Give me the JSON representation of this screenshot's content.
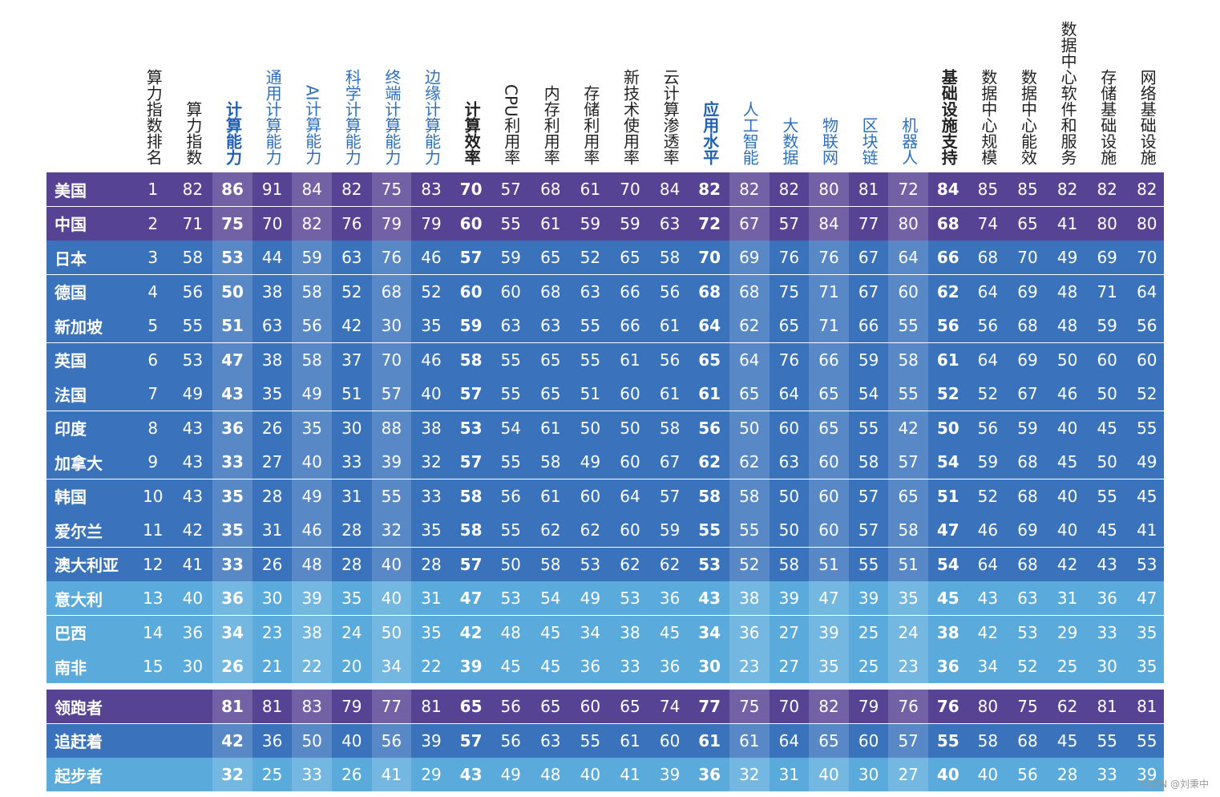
{
  "headers": [
    {
      "label": "算力指数排名",
      "style": "normal"
    },
    {
      "label": "算力指数",
      "style": "normal"
    },
    {
      "label": "计算能力",
      "style": "blue-bold"
    },
    {
      "label": "通用计算能力",
      "style": "blue"
    },
    {
      "label": "AI计算能力",
      "style": "blue"
    },
    {
      "label": "科学计算能力",
      "style": "blue"
    },
    {
      "label": "终端计算能力",
      "style": "blue"
    },
    {
      "label": "边缘计算能力",
      "style": "blue"
    },
    {
      "label": "计算效率",
      "style": "bold"
    },
    {
      "label": "CPU利用率",
      "style": "normal"
    },
    {
      "label": "内存利用率",
      "style": "normal"
    },
    {
      "label": "存储利用率",
      "style": "normal"
    },
    {
      "label": "新技术使用率",
      "style": "normal"
    },
    {
      "label": "云计算渗透率",
      "style": "normal"
    },
    {
      "label": "应用水平",
      "style": "blue-bold"
    },
    {
      "label": "人工智能",
      "style": "blue"
    },
    {
      "label": "大数据",
      "style": "blue"
    },
    {
      "label": "物联网",
      "style": "blue"
    },
    {
      "label": "区块链",
      "style": "blue"
    },
    {
      "label": "机器人",
      "style": "blue"
    },
    {
      "label": "基础设施支持",
      "style": "bold"
    },
    {
      "label": "数据中心规模",
      "style": "normal"
    },
    {
      "label": "数据中心能效",
      "style": "normal"
    },
    {
      "label": "数据中心软件和服务",
      "style": "normal"
    },
    {
      "label": "存储基础设施",
      "style": "normal"
    },
    {
      "label": "网络基础设施",
      "style": "normal"
    }
  ],
  "bold_columns": [
    2,
    8,
    14,
    20
  ],
  "banded_columns": [
    2,
    4,
    6,
    15,
    17,
    19
  ],
  "colors": {
    "leader": "#574394",
    "catcher": "#3a72bb",
    "starter": "#5aaadc"
  },
  "rows": [
    {
      "name": "美国",
      "group": "leader",
      "values": [
        "1",
        "82",
        "86",
        "91",
        "84",
        "82",
        "75",
        "83",
        "70",
        "57",
        "68",
        "61",
        "70",
        "84",
        "82",
        "82",
        "82",
        "80",
        "81",
        "72",
        "84",
        "85",
        "85",
        "82",
        "82",
        "82"
      ]
    },
    {
      "name": "中国",
      "group": "leader",
      "values": [
        "2",
        "71",
        "75",
        "70",
        "82",
        "76",
        "79",
        "79",
        "60",
        "55",
        "61",
        "59",
        "59",
        "63",
        "72",
        "67",
        "57",
        "84",
        "77",
        "80",
        "68",
        "74",
        "65",
        "41",
        "80",
        "80"
      ]
    },
    {
      "name": "日本",
      "group": "catcher",
      "values": [
        "3",
        "58",
        "53",
        "44",
        "59",
        "63",
        "76",
        "46",
        "57",
        "59",
        "65",
        "52",
        "65",
        "58",
        "70",
        "69",
        "76",
        "76",
        "67",
        "64",
        "66",
        "68",
        "70",
        "49",
        "69",
        "70"
      ]
    },
    {
      "name": "德国",
      "group": "catcher",
      "values": [
        "4",
        "56",
        "50",
        "38",
        "58",
        "52",
        "68",
        "52",
        "60",
        "60",
        "68",
        "63",
        "66",
        "56",
        "68",
        "68",
        "75",
        "71",
        "67",
        "60",
        "62",
        "64",
        "69",
        "48",
        "71",
        "64"
      ]
    },
    {
      "name": "新加坡",
      "group": "catcher",
      "values": [
        "5",
        "55",
        "51",
        "63",
        "56",
        "42",
        "30",
        "35",
        "59",
        "63",
        "63",
        "55",
        "66",
        "61",
        "64",
        "62",
        "65",
        "71",
        "66",
        "55",
        "56",
        "56",
        "68",
        "48",
        "59",
        "56"
      ]
    },
    {
      "name": "英国",
      "group": "catcher",
      "values": [
        "6",
        "53",
        "47",
        "38",
        "58",
        "37",
        "70",
        "46",
        "58",
        "55",
        "65",
        "55",
        "61",
        "56",
        "65",
        "64",
        "76",
        "66",
        "59",
        "58",
        "61",
        "64",
        "69",
        "50",
        "60",
        "60"
      ]
    },
    {
      "name": "法国",
      "group": "catcher",
      "values": [
        "7",
        "49",
        "43",
        "35",
        "49",
        "51",
        "57",
        "40",
        "57",
        "55",
        "65",
        "51",
        "60",
        "61",
        "61",
        "65",
        "64",
        "65",
        "54",
        "55",
        "52",
        "52",
        "67",
        "46",
        "50",
        "52"
      ]
    },
    {
      "name": "印度",
      "group": "catcher",
      "values": [
        "8",
        "43",
        "36",
        "26",
        "35",
        "30",
        "88",
        "38",
        "53",
        "54",
        "61",
        "50",
        "50",
        "58",
        "56",
        "50",
        "60",
        "65",
        "55",
        "42",
        "50",
        "56",
        "59",
        "40",
        "45",
        "55"
      ]
    },
    {
      "name": "加拿大",
      "group": "catcher",
      "values": [
        "9",
        "43",
        "33",
        "27",
        "40",
        "33",
        "39",
        "32",
        "57",
        "55",
        "58",
        "49",
        "60",
        "67",
        "62",
        "62",
        "63",
        "60",
        "58",
        "57",
        "54",
        "59",
        "68",
        "45",
        "50",
        "49"
      ]
    },
    {
      "name": "韩国",
      "group": "catcher",
      "values": [
        "10",
        "43",
        "35",
        "28",
        "49",
        "31",
        "55",
        "33",
        "58",
        "56",
        "61",
        "60",
        "64",
        "57",
        "58",
        "58",
        "50",
        "60",
        "57",
        "65",
        "51",
        "52",
        "68",
        "40",
        "55",
        "45"
      ]
    },
    {
      "name": "爱尔兰",
      "group": "catcher",
      "values": [
        "11",
        "42",
        "35",
        "31",
        "46",
        "28",
        "32",
        "35",
        "58",
        "55",
        "62",
        "62",
        "60",
        "59",
        "55",
        "55",
        "50",
        "60",
        "57",
        "58",
        "47",
        "46",
        "69",
        "40",
        "45",
        "41"
      ]
    },
    {
      "name": "澳大利亚",
      "group": "catcher",
      "values": [
        "12",
        "41",
        "33",
        "26",
        "48",
        "28",
        "40",
        "28",
        "57",
        "50",
        "58",
        "53",
        "62",
        "62",
        "53",
        "52",
        "58",
        "51",
        "55",
        "51",
        "54",
        "64",
        "68",
        "42",
        "43",
        "53"
      ]
    },
    {
      "name": "意大利",
      "group": "starter",
      "values": [
        "13",
        "40",
        "36",
        "30",
        "39",
        "35",
        "40",
        "31",
        "47",
        "53",
        "54",
        "49",
        "53",
        "36",
        "43",
        "38",
        "39",
        "47",
        "39",
        "35",
        "45",
        "43",
        "63",
        "31",
        "36",
        "47"
      ]
    },
    {
      "name": "巴西",
      "group": "starter",
      "values": [
        "14",
        "36",
        "34",
        "23",
        "38",
        "24",
        "50",
        "35",
        "42",
        "48",
        "45",
        "34",
        "38",
        "45",
        "34",
        "36",
        "27",
        "39",
        "25",
        "24",
        "38",
        "42",
        "53",
        "29",
        "33",
        "35"
      ]
    },
    {
      "name": "南非",
      "group": "starter",
      "values": [
        "15",
        "30",
        "26",
        "21",
        "22",
        "20",
        "34",
        "22",
        "39",
        "45",
        "45",
        "36",
        "33",
        "36",
        "30",
        "23",
        "27",
        "35",
        "25",
        "23",
        "36",
        "34",
        "52",
        "25",
        "30",
        "35"
      ]
    }
  ],
  "summary_rows": [
    {
      "name": "领跑者",
      "group": "leader",
      "values": [
        "",
        "",
        "81",
        "81",
        "83",
        "79",
        "77",
        "81",
        "65",
        "56",
        "65",
        "60",
        "65",
        "74",
        "77",
        "75",
        "70",
        "82",
        "79",
        "76",
        "76",
        "80",
        "75",
        "62",
        "81",
        "81"
      ]
    },
    {
      "name": "追赶着",
      "group": "catcher",
      "values": [
        "",
        "",
        "42",
        "36",
        "50",
        "40",
        "56",
        "39",
        "57",
        "56",
        "63",
        "55",
        "61",
        "60",
        "61",
        "61",
        "64",
        "65",
        "60",
        "57",
        "55",
        "58",
        "68",
        "45",
        "55",
        "55"
      ]
    },
    {
      "name": "起步者",
      "group": "starter",
      "values": [
        "",
        "",
        "32",
        "25",
        "33",
        "26",
        "41",
        "29",
        "43",
        "49",
        "48",
        "40",
        "41",
        "39",
        "36",
        "32",
        "31",
        "40",
        "30",
        "27",
        "40",
        "40",
        "56",
        "28",
        "33",
        "39"
      ]
    }
  ],
  "watermark": "CSDN @刘秉中"
}
